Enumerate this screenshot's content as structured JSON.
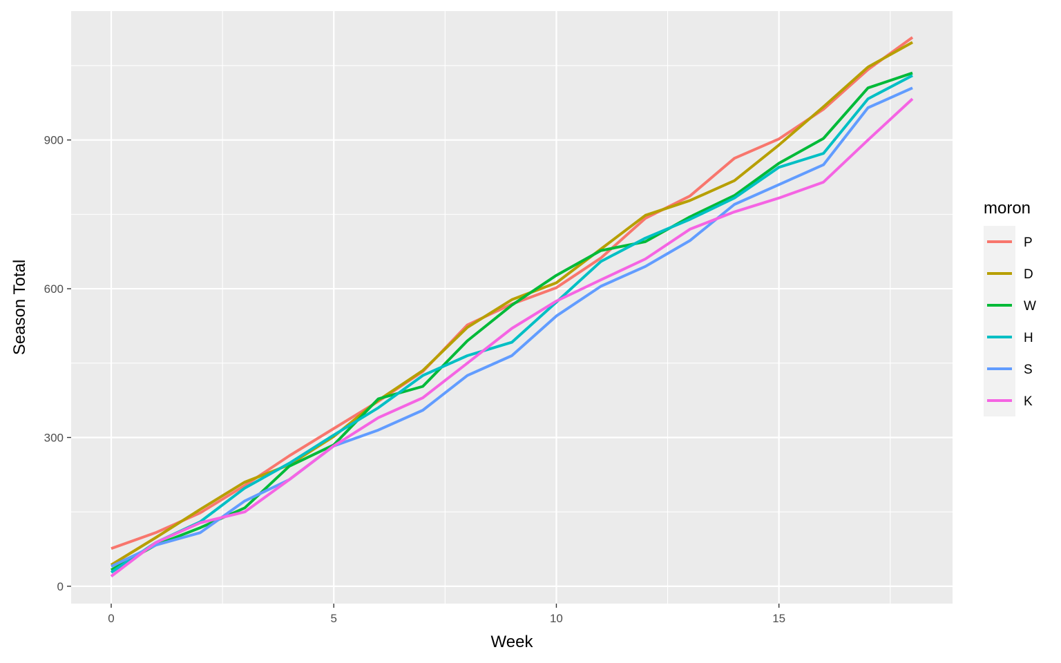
{
  "chart_data": {
    "type": "line",
    "xlabel": "Week",
    "ylabel": "Season Total",
    "x_ticks": [
      0,
      5,
      10,
      15
    ],
    "y_ticks": [
      0,
      300,
      600,
      900
    ],
    "xlim": [
      -0.9,
      18.9
    ],
    "ylim": [
      -35,
      1160
    ],
    "grid": true,
    "legend": {
      "title": "moron",
      "position": "right"
    },
    "x": [
      0,
      1,
      2,
      3,
      4,
      5,
      6,
      7,
      8,
      9,
      10,
      11,
      12,
      13,
      14,
      15,
      16,
      17,
      18
    ],
    "series": [
      {
        "name": "P",
        "color": "#F8766D",
        "values": [
          76,
          108,
          148,
          203,
          263,
          318,
          373,
          433,
          527,
          569,
          602,
          662,
          742,
          787,
          863,
          902,
          962,
          1042,
          1107
        ]
      },
      {
        "name": "D",
        "color": "#B79F00",
        "values": [
          43,
          98,
          155,
          210,
          245,
          302,
          375,
          435,
          522,
          578,
          612,
          680,
          748,
          778,
          818,
          890,
          967,
          1047,
          1097
        ]
      },
      {
        "name": "W",
        "color": "#00BA38",
        "values": [
          33,
          83,
          118,
          158,
          242,
          285,
          378,
          403,
          495,
          567,
          627,
          677,
          695,
          745,
          788,
          853,
          903,
          1005,
          1035
        ]
      },
      {
        "name": "H",
        "color": "#00BFC4",
        "values": [
          28,
          88,
          130,
          198,
          248,
          305,
          360,
          425,
          465,
          492,
          573,
          655,
          702,
          740,
          783,
          845,
          873,
          983,
          1030
        ]
      },
      {
        "name": "S",
        "color": "#619CFF",
        "values": [
          40,
          83,
          108,
          172,
          215,
          283,
          315,
          355,
          425,
          465,
          545,
          605,
          645,
          697,
          770,
          810,
          850,
          965,
          1005
        ]
      },
      {
        "name": "K",
        "color": "#F564E3",
        "values": [
          20,
          88,
          128,
          150,
          215,
          283,
          340,
          380,
          450,
          520,
          575,
          618,
          660,
          720,
          755,
          783,
          815,
          900,
          983
        ]
      }
    ],
    "colors": {
      "panel": "#EBEBEB",
      "grid": "#FFFFFF",
      "legend_key_bg": "#F2F2F2"
    }
  }
}
